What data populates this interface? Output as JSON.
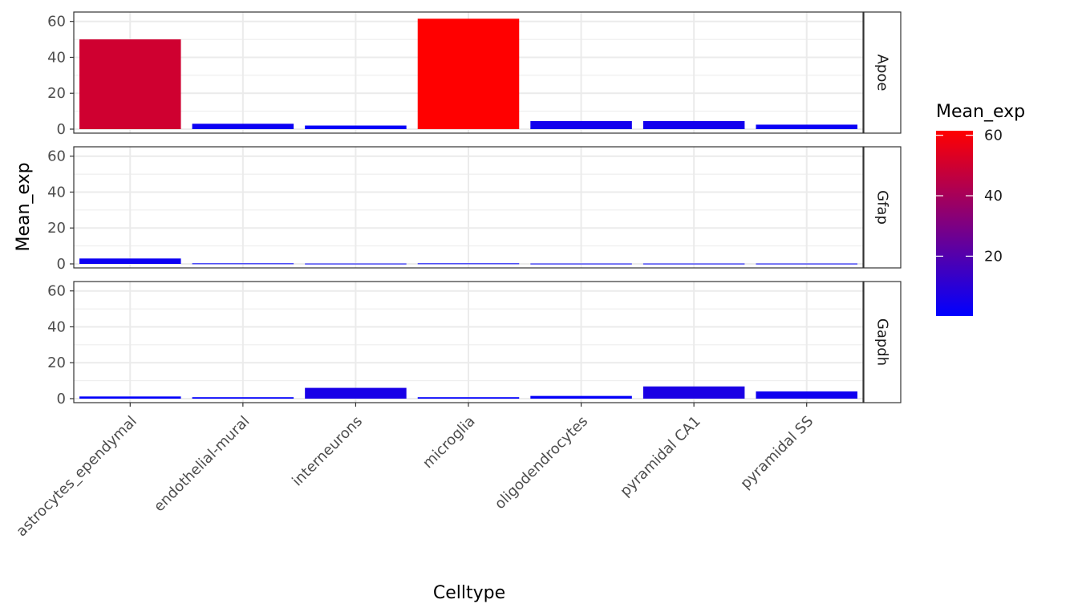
{
  "chart_data": {
    "type": "bar",
    "facet_by": "gene",
    "xlabel": "Celltype",
    "ylabel": "Mean_exp",
    "ylim": [
      0,
      63
    ],
    "yticks": [
      0,
      20,
      40,
      60
    ],
    "categories": [
      "astrocytes_ependymal",
      "endothelial-mural",
      "interneurons",
      "microglia",
      "oligodendrocytes",
      "pyramidal CA1",
      "pyramidal SS"
    ],
    "series": [
      {
        "name": "Apoe",
        "values": [
          50,
          3,
          2,
          61.5,
          4.5,
          4.5,
          2.5
        ]
      },
      {
        "name": "Gfap",
        "values": [
          3,
          0.3,
          0.2,
          0.3,
          0.2,
          0.2,
          0.2
        ]
      },
      {
        "name": "Gapdh",
        "values": [
          1.2,
          0.8,
          6,
          0.8,
          1.5,
          6.8,
          4
        ]
      }
    ],
    "grid": true,
    "legend": {
      "title": "Mean_exp",
      "position": "right",
      "type": "colorbar",
      "low_color": "#0000ff",
      "high_color": "#ff0000",
      "range": [
        0.2,
        61.5
      ],
      "ticks": [
        20,
        40,
        60
      ]
    }
  }
}
